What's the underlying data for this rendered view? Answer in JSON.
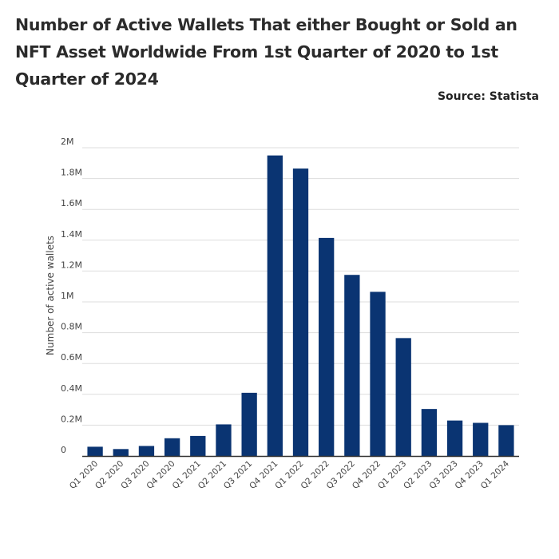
{
  "header": {
    "title": "Number of Active Wallets That either Bought or Sold an NFT Asset Worldwide From 1st Quarter of 2020 to 1st Quarter of 2024",
    "source": "Source: Statista"
  },
  "colors": {
    "bar": "#0a3472",
    "grid": "#dddddd",
    "axis": "#333333"
  },
  "chart_data": {
    "type": "bar",
    "title": "Number of Active Wallets That either Bought or Sold an NFT Asset Worldwide From 1st Quarter of 2020 to 1st Quarter of 2024",
    "xlabel": "",
    "ylabel": "Number of active wallets",
    "ylim": [
      0,
      2000000
    ],
    "grid": true,
    "categories": [
      "Q1 2020",
      "Q2 2020",
      "Q3 2020",
      "Q4 2020",
      "Q1 2021",
      "Q2 2021",
      "Q3 2021",
      "Q4 2021",
      "Q1 2022",
      "Q2 2022",
      "Q3 2022",
      "Q4 2022",
      "Q1 2023",
      "Q2 2023",
      "Q3 2023",
      "Q4 2023",
      "Q1 2024"
    ],
    "values": [
      60000,
      45000,
      65000,
      115000,
      130000,
      205000,
      410000,
      1950000,
      1865000,
      1415000,
      1175000,
      1065000,
      765000,
      305000,
      230000,
      215000,
      200000
    ],
    "yticks": [
      {
        "value": 0,
        "label": "0"
      },
      {
        "value": 200000,
        "label": "0.2M"
      },
      {
        "value": 400000,
        "label": "0.4M"
      },
      {
        "value": 600000,
        "label": "0.6M"
      },
      {
        "value": 800000,
        "label": "0.8M"
      },
      {
        "value": 1000000,
        "label": "1M"
      },
      {
        "value": 1200000,
        "label": "1.2M"
      },
      {
        "value": 1400000,
        "label": "1.4M"
      },
      {
        "value": 1600000,
        "label": "1.6M"
      },
      {
        "value": 1800000,
        "label": "1.8M"
      },
      {
        "value": 2000000,
        "label": "2M"
      }
    ]
  }
}
